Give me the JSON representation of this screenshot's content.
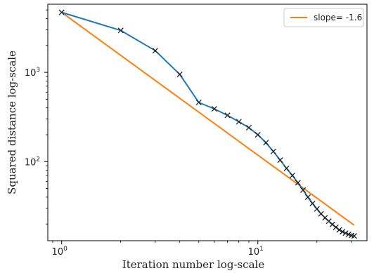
{
  "chart_data": {
    "type": "line",
    "xscale": "log",
    "yscale": "log",
    "xlabel": "Iteration number log-scale",
    "ylabel": "Squared distance log-scale",
    "xlim": [
      0.85,
      36
    ],
    "ylim": [
      13,
      5800
    ],
    "xticks": [
      {
        "value": 1,
        "base": "10",
        "exp": "0"
      },
      {
        "value": 10,
        "base": "10",
        "exp": "1"
      }
    ],
    "yticks": [
      {
        "value": 100,
        "base": "10",
        "exp": "2"
      },
      {
        "value": 1000,
        "base": "10",
        "exp": "3"
      }
    ],
    "grid": false,
    "legend_position": "top-right",
    "series": [
      {
        "color": "#1f77b4",
        "marker": "x",
        "marker_color": "#222222",
        "x": [
          1,
          2,
          3,
          4,
          5,
          6,
          7,
          8,
          9,
          10,
          11,
          12,
          13,
          14,
          15,
          16,
          17,
          18,
          19,
          20,
          21,
          22,
          23,
          24,
          25,
          26,
          27,
          28,
          29,
          30,
          31
        ],
        "y": [
          4700,
          2950,
          1750,
          950,
          460,
          390,
          330,
          280,
          240,
          200,
          163,
          130,
          104,
          84,
          70,
          58,
          48,
          40,
          34,
          29.5,
          26,
          23.5,
          21.5,
          19.8,
          18.4,
          17.2,
          16.4,
          15.8,
          15.3,
          14.9,
          14.7
        ]
      },
      {
        "name": "slope= -1.6",
        "color": "#ff7f0e",
        "x": [
          1,
          31
        ],
        "y": [
          4700,
          19.4
        ]
      }
    ]
  }
}
